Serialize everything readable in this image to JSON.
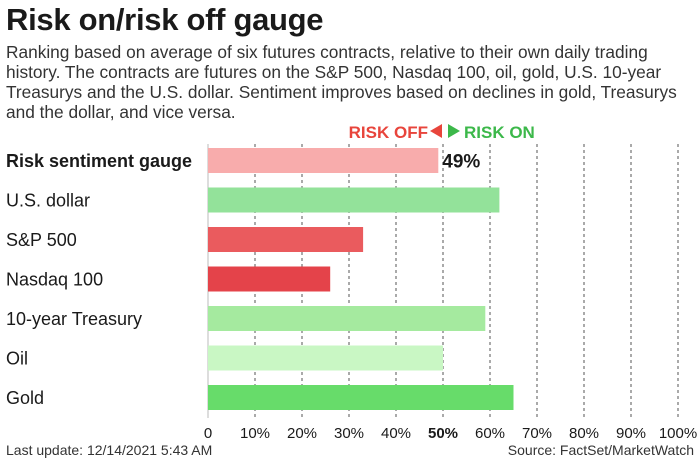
{
  "header": {
    "title": "Risk on/risk off gauge",
    "subtitle": "Ranking based on average of six futures contracts, relative to their own daily trading history. The contracts are futures on the S&P 500, Nasdaq 100, oil, gold, U.S. 10-year Treasurys and the U.S. dollar. Sentiment improves based on declines in gold, Treasurys and the dollar, and vice versa."
  },
  "legend": {
    "risk_off": "RISK OFF",
    "risk_on": "RISK ON",
    "risk_off_color": "#e8453c",
    "risk_on_color": "#3cb84a"
  },
  "footer": {
    "last_update": "Last update: 12/14/2021 5:43 AM",
    "source": "Source: FactSet/MarketWatch"
  },
  "chart_data": {
    "type": "bar",
    "orientation": "horizontal",
    "categories": [
      "Risk sentiment gauge",
      "U.S. dollar",
      "S&P 500",
      "Nasdaq 100",
      "10-year Treasury",
      "Oil",
      "Gold"
    ],
    "values": [
      49,
      62,
      33,
      26,
      59,
      50,
      65
    ],
    "colors": [
      "#f8acac",
      "#93e29a",
      "#ea5b5e",
      "#e4434a",
      "#a5ea9f",
      "#c9f7c4",
      "#67dc6a"
    ],
    "data_labels": [
      "49%",
      "",
      "",
      "",
      "",
      "",
      ""
    ],
    "xlim": [
      0,
      100
    ],
    "x_ticks": [
      "0",
      "10%",
      "20%",
      "30%",
      "40%",
      "50%",
      "60%",
      "70%",
      "80%",
      "90%",
      "100%"
    ],
    "emphasized_tick": "50%",
    "grid": "vertical dashed",
    "title": "Risk on/risk off gauge"
  }
}
